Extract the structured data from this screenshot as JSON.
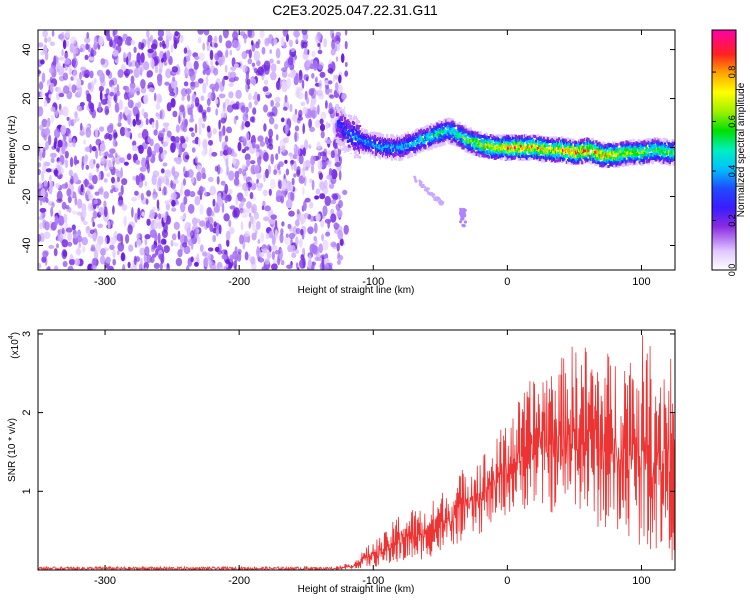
{
  "title": "C2E3.2025.047.22.31.G11",
  "chart_data": [
    {
      "type": "heatmap",
      "xlabel": "Height of straight line (km)",
      "ylabel": "Frequency (Hz)",
      "xlim": [
        -350,
        125
      ],
      "ylim": [
        -50,
        48
      ],
      "x_ticks": [
        -300,
        -200,
        -100,
        0,
        100
      ],
      "y_ticks": [
        -40,
        -20,
        0,
        20,
        40
      ],
      "noise_region_x": [
        -350,
        -120
      ],
      "ridge": {
        "x": [
          -128,
          -120,
          -110,
          -100,
          -90,
          -80,
          -70,
          -60,
          -50,
          -45,
          -40,
          -30,
          -20,
          -10,
          0,
          10,
          20,
          30,
          40,
          50,
          60,
          70,
          80,
          90,
          100,
          110,
          120,
          125
        ],
        "freq": [
          10,
          6,
          3,
          1,
          0,
          0,
          2,
          4,
          6,
          7,
          6,
          3,
          1,
          0,
          0,
          0,
          0,
          -1,
          -1,
          -2,
          -1,
          -3,
          -3,
          -2,
          -2,
          -1,
          -2,
          -2
        ],
        "amp": [
          0.35,
          0.4,
          0.45,
          0.5,
          0.5,
          0.5,
          0.55,
          0.6,
          0.6,
          0.6,
          0.65,
          0.7,
          0.8,
          0.85,
          0.9,
          0.95,
          0.9,
          0.85,
          0.9,
          0.95,
          0.9,
          0.9,
          0.85,
          0.8,
          0.75,
          0.7,
          0.7,
          0.65
        ]
      },
      "branch": {
        "x": [
          -70,
          -62,
          -55,
          -48
        ],
        "freq": [
          -12,
          -16,
          -20,
          -23
        ]
      },
      "blob": {
        "x": -33,
        "freq": [
          -25,
          -32
        ]
      },
      "colorbar": {
        "label": "Normalized spectral amplitude",
        "ticks": [
          0.0,
          0.2,
          0.4,
          0.6,
          0.8
        ],
        "range": [
          0,
          0.97
        ]
      }
    },
    {
      "type": "line",
      "xlabel": "Height of straight line (km)",
      "ylabel": "SNR (10 * v/v)",
      "exponent_label": "(x10",
      "exponent_sup": "4",
      "exponent_close": ")",
      "xlim": [
        -350,
        125
      ],
      "ylim": [
        0,
        3.05
      ],
      "x_ticks": [
        -300,
        -200,
        -100,
        0,
        100
      ],
      "y_ticks": [
        1,
        2,
        3
      ],
      "color": "#ee3333",
      "envelope": {
        "x": [
          -350,
          -130,
          -115,
          -105,
          -90,
          -80,
          -70,
          -60,
          -50,
          -40,
          -30,
          -20,
          -10,
          0,
          10,
          20,
          30,
          40,
          50,
          60,
          70,
          80,
          90,
          100,
          110,
          120,
          125
        ],
        "low": [
          0.0,
          0.0,
          0.01,
          0.03,
          0.05,
          0.08,
          0.1,
          0.15,
          0.2,
          0.3,
          0.4,
          0.45,
          0.6,
          0.7,
          0.75,
          0.8,
          0.7,
          0.75,
          0.8,
          0.6,
          0.5,
          0.4,
          0.4,
          0.3,
          0.2,
          0.15,
          0.1
        ],
        "high": [
          0.04,
          0.04,
          0.1,
          0.3,
          0.5,
          0.75,
          0.8,
          0.8,
          1.0,
          1.1,
          1.4,
          1.5,
          1.6,
          2.0,
          2.2,
          2.5,
          2.7,
          2.7,
          2.9,
          2.9,
          2.8,
          2.8,
          2.9,
          3.0,
          2.9,
          2.9,
          2.9
        ]
      }
    }
  ]
}
